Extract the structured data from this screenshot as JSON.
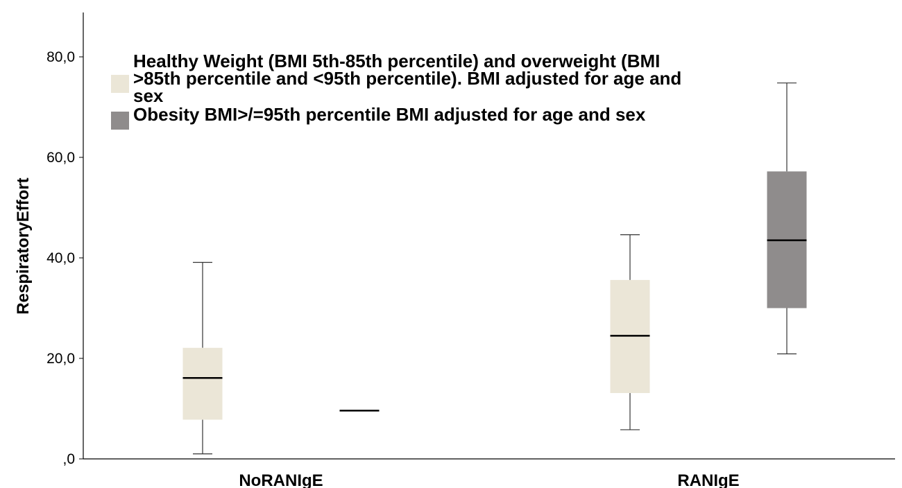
{
  "chart_data": {
    "type": "boxplot",
    "ylabel": "RespiratoryEffort",
    "ylim": [
      0,
      88
    ],
    "yticks": [
      0,
      20,
      40,
      60,
      80
    ],
    "ytick_labels": [
      ",0",
      "20,0",
      "40,0",
      "60,0",
      "80,0"
    ],
    "categories": [
      "NoRANIgE",
      "RANIgE"
    ],
    "series": [
      {
        "name": "Healthy Weight (BMI 5th-85th percentile) and overweight (BMI >85th percentile and <95th percentile). BMI adjusted for age and sex",
        "color": "#ebe6d7",
        "boxes": [
          {
            "category": "NoRANIgE",
            "min": 1.0,
            "q1": 7.8,
            "median": 16.1,
            "q3": 22.1,
            "max": 39.1
          },
          {
            "category": "RANIgE",
            "min": 5.8,
            "q1": 13.1,
            "median": 24.5,
            "q3": 35.6,
            "max": 44.6
          }
        ]
      },
      {
        "name": "Obesity BMI>/=95th percentile BMI adjusted for age and sex",
        "color": "#8f8c8c",
        "boxes": [
          {
            "category": "NoRANIgE",
            "min": 9.6,
            "q1": 9.6,
            "median": 9.6,
            "q3": 9.6,
            "max": 9.6
          },
          {
            "category": "RANIgE",
            "min": 20.9,
            "q1": 30.0,
            "median": 43.5,
            "q3": 57.2,
            "max": 74.8
          }
        ]
      }
    ],
    "legend_position": "top-left",
    "grid": false
  }
}
